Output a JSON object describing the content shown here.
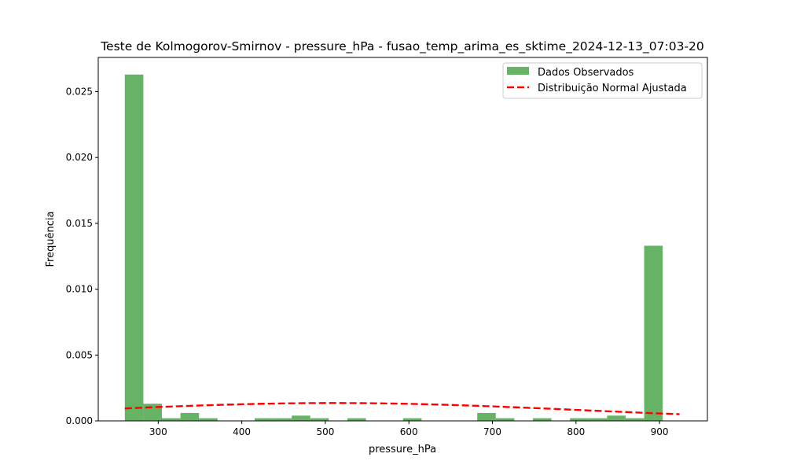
{
  "chart_data": {
    "type": "bar",
    "title": "Teste de Kolmogorov-Smirnov - pressure_hPa - fusao_temp_arima_es_sktime_2024-12-13_07:03-20",
    "xlabel": "pressure_hPa",
    "ylabel": "Frequência",
    "xlim": [
      228.2,
      957.3
    ],
    "ylim": [
      0,
      0.0276
    ],
    "xticks": [
      300,
      400,
      500,
      600,
      700,
      800,
      900
    ],
    "yticks": [
      0.0,
      0.005,
      0.01,
      0.015,
      0.02,
      0.025
    ],
    "ytick_labels": [
      "0.000",
      "0.005",
      "0.010",
      "0.015",
      "0.020",
      "0.025"
    ],
    "legend_position": "top-right",
    "legend": [
      {
        "label": "Dados Observados",
        "kind": "patch",
        "color": "#66b366"
      },
      {
        "label": "Distribuição Normal Ajustada",
        "kind": "dashed-line",
        "color": "#ff0000"
      }
    ],
    "histogram": {
      "name": "Dados Observados",
      "color": "#66b366",
      "bin_start": 260,
      "bin_width": 22.2,
      "values": [
        0.0263,
        0.0013,
        0.0002,
        0.0006,
        0.0002,
        0,
        0,
        0.0002,
        0.0002,
        0.0004,
        0.0002,
        0,
        0.0002,
        0,
        0,
        0.0002,
        0,
        0,
        0,
        0.0006,
        0.0002,
        0,
        0.0002,
        0,
        0.0002,
        0.0002,
        0.0004,
        0.0002,
        0.0133
      ]
    },
    "normal_fit": {
      "name": "Distribuição Normal Ajustada",
      "color": "#ff0000",
      "mean": 510,
      "std": 295,
      "x_range": [
        260,
        924
      ]
    }
  }
}
